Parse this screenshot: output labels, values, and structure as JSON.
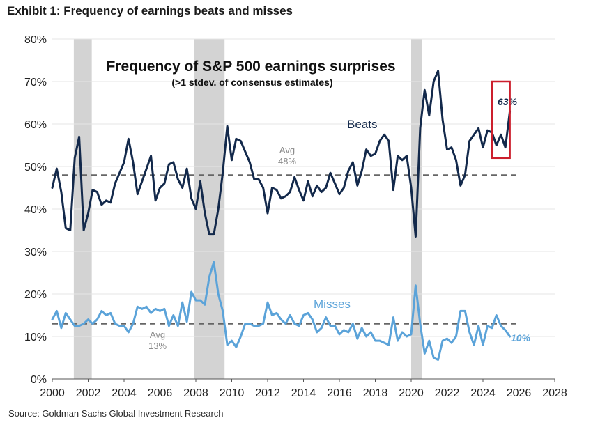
{
  "exhibit_title": "Exhibit 1: Frequency of earnings beats and misses",
  "source": "Source: Goldman Sachs Global Investment Research",
  "colors": {
    "beats": "#13294b",
    "misses": "#5ba3d9",
    "avg_line": "#666666",
    "recession": "#d3d3d3",
    "highlight_box": "#cc1f2d",
    "grid": "#e6e6e6"
  },
  "chart_data": {
    "type": "line",
    "title": "Frequency of S&P 500 earnings surprises",
    "subtitle": "(>1 stdev. of consensus estimates)",
    "xlabel": "",
    "ylabel": "",
    "xlim": [
      2000,
      2028
    ],
    "ylim": [
      0,
      80
    ],
    "x_ticks": [
      "2000",
      "2002",
      "2004",
      "2006",
      "2008",
      "2010",
      "2012",
      "2014",
      "2016",
      "2018",
      "2020",
      "2022",
      "2024",
      "2026",
      "2028"
    ],
    "y_ticks": [
      "0%",
      "10%",
      "20%",
      "30%",
      "40%",
      "50%",
      "60%",
      "70%",
      "80%"
    ],
    "grid": "horizontal",
    "recessions": [
      [
        2001.2,
        2002.2
      ],
      [
        2007.9,
        2009.6
      ],
      [
        2020.0,
        2020.6
      ]
    ],
    "averages": [
      {
        "series": "Beats",
        "value": 48,
        "label_line1": "Avg",
        "label_line2": "48%"
      },
      {
        "series": "Misses",
        "value": 13,
        "label_line1": "Avg",
        "label_line2": "13%"
      }
    ],
    "highlight": {
      "x_from": 2024.5,
      "x_to": 2025.5,
      "y_from": 52,
      "y_to": 70
    },
    "series": [
      {
        "name": "Beats",
        "end_label": "63%",
        "points": [
          [
            2000.0,
            45.0
          ],
          [
            2000.25,
            49.5
          ],
          [
            2000.5,
            44.0
          ],
          [
            2000.75,
            35.5
          ],
          [
            2001.0,
            35.0
          ],
          [
            2001.25,
            52.0
          ],
          [
            2001.5,
            57.0
          ],
          [
            2001.75,
            35.0
          ],
          [
            2002.0,
            39.0
          ],
          [
            2002.25,
            44.5
          ],
          [
            2002.5,
            44.0
          ],
          [
            2002.75,
            41.0
          ],
          [
            2003.0,
            42.0
          ],
          [
            2003.25,
            41.5
          ],
          [
            2003.5,
            46.0
          ],
          [
            2003.75,
            48.5
          ],
          [
            2004.0,
            51.0
          ],
          [
            2004.25,
            56.5
          ],
          [
            2004.5,
            51.0
          ],
          [
            2004.75,
            43.5
          ],
          [
            2005.0,
            46.5
          ],
          [
            2005.25,
            49.5
          ],
          [
            2005.5,
            52.5
          ],
          [
            2005.75,
            42.0
          ],
          [
            2006.0,
            45.0
          ],
          [
            2006.25,
            46.0
          ],
          [
            2006.5,
            50.5
          ],
          [
            2006.75,
            51.0
          ],
          [
            2007.0,
            47.0
          ],
          [
            2007.25,
            45.0
          ],
          [
            2007.5,
            49.5
          ],
          [
            2007.75,
            42.5
          ],
          [
            2008.0,
            40.0
          ],
          [
            2008.25,
            46.5
          ],
          [
            2008.5,
            39.0
          ],
          [
            2008.75,
            34.0
          ],
          [
            2009.0,
            34.0
          ],
          [
            2009.25,
            40.0
          ],
          [
            2009.5,
            48.5
          ],
          [
            2009.75,
            59.5
          ],
          [
            2010.0,
            51.5
          ],
          [
            2010.25,
            56.5
          ],
          [
            2010.5,
            56.0
          ],
          [
            2010.75,
            53.5
          ],
          [
            2011.0,
            51.0
          ],
          [
            2011.25,
            47.0
          ],
          [
            2011.5,
            47.0
          ],
          [
            2011.75,
            45.0
          ],
          [
            2012.0,
            39.0
          ],
          [
            2012.25,
            45.0
          ],
          [
            2012.5,
            44.5
          ],
          [
            2012.75,
            42.5
          ],
          [
            2013.0,
            43.0
          ],
          [
            2013.25,
            44.0
          ],
          [
            2013.5,
            47.5
          ],
          [
            2013.75,
            44.5
          ],
          [
            2014.0,
            42.0
          ],
          [
            2014.25,
            46.5
          ],
          [
            2014.5,
            43.0
          ],
          [
            2014.75,
            45.5
          ],
          [
            2015.0,
            44.0
          ],
          [
            2015.25,
            45.0
          ],
          [
            2015.5,
            48.5
          ],
          [
            2015.75,
            46.0
          ],
          [
            2016.0,
            43.5
          ],
          [
            2016.25,
            45.0
          ],
          [
            2016.5,
            49.0
          ],
          [
            2016.75,
            51.0
          ],
          [
            2017.0,
            45.5
          ],
          [
            2017.25,
            49.0
          ],
          [
            2017.5,
            54.0
          ],
          [
            2017.75,
            52.5
          ],
          [
            2018.0,
            53.0
          ],
          [
            2018.25,
            56.0
          ],
          [
            2018.5,
            57.5
          ],
          [
            2018.75,
            56.0
          ],
          [
            2019.0,
            44.5
          ],
          [
            2019.25,
            52.5
          ],
          [
            2019.5,
            51.5
          ],
          [
            2019.75,
            52.5
          ],
          [
            2020.0,
            45.0
          ],
          [
            2020.25,
            33.5
          ],
          [
            2020.5,
            59.0
          ],
          [
            2020.75,
            68.0
          ],
          [
            2021.0,
            62.0
          ],
          [
            2021.25,
            70.0
          ],
          [
            2021.5,
            72.5
          ],
          [
            2021.75,
            61.0
          ],
          [
            2022.0,
            54.0
          ],
          [
            2022.25,
            54.5
          ],
          [
            2022.5,
            51.5
          ],
          [
            2022.75,
            45.5
          ],
          [
            2023.0,
            48.0
          ],
          [
            2023.25,
            56.0
          ],
          [
            2023.5,
            57.5
          ],
          [
            2023.75,
            59.0
          ],
          [
            2024.0,
            54.5
          ],
          [
            2024.25,
            58.5
          ],
          [
            2024.5,
            58.0
          ],
          [
            2024.75,
            55.0
          ],
          [
            2025.0,
            57.5
          ],
          [
            2025.25,
            54.5
          ],
          [
            2025.5,
            63.0
          ]
        ]
      },
      {
        "name": "Misses",
        "end_label": "10%",
        "points": [
          [
            2000.0,
            14.0
          ],
          [
            2000.25,
            16.0
          ],
          [
            2000.5,
            12.0
          ],
          [
            2000.75,
            15.5
          ],
          [
            2001.0,
            14.0
          ],
          [
            2001.25,
            12.5
          ],
          [
            2001.5,
            12.5
          ],
          [
            2001.75,
            13.0
          ],
          [
            2002.0,
            14.0
          ],
          [
            2002.25,
            13.0
          ],
          [
            2002.5,
            14.0
          ],
          [
            2002.75,
            16.0
          ],
          [
            2003.0,
            15.0
          ],
          [
            2003.25,
            15.5
          ],
          [
            2003.5,
            13.0
          ],
          [
            2003.75,
            12.5
          ],
          [
            2004.0,
            12.5
          ],
          [
            2004.25,
            11.0
          ],
          [
            2004.5,
            13.0
          ],
          [
            2004.75,
            17.0
          ],
          [
            2005.0,
            16.5
          ],
          [
            2005.25,
            17.0
          ],
          [
            2005.5,
            15.5
          ],
          [
            2005.75,
            16.5
          ],
          [
            2006.0,
            16.0
          ],
          [
            2006.25,
            16.5
          ],
          [
            2006.5,
            12.5
          ],
          [
            2006.75,
            15.0
          ],
          [
            2007.0,
            12.5
          ],
          [
            2007.25,
            18.0
          ],
          [
            2007.5,
            13.5
          ],
          [
            2007.75,
            20.5
          ],
          [
            2008.0,
            18.5
          ],
          [
            2008.25,
            18.5
          ],
          [
            2008.5,
            17.5
          ],
          [
            2008.75,
            24.0
          ],
          [
            2009.0,
            27.5
          ],
          [
            2009.25,
            20.0
          ],
          [
            2009.5,
            16.0
          ],
          [
            2009.75,
            8.0
          ],
          [
            2010.0,
            9.0
          ],
          [
            2010.25,
            7.5
          ],
          [
            2010.5,
            10.0
          ],
          [
            2010.75,
            13.0
          ],
          [
            2011.0,
            13.0
          ],
          [
            2011.25,
            12.5
          ],
          [
            2011.5,
            12.5
          ],
          [
            2011.75,
            13.0
          ],
          [
            2012.0,
            18.0
          ],
          [
            2012.25,
            15.0
          ],
          [
            2012.5,
            15.5
          ],
          [
            2012.75,
            14.0
          ],
          [
            2013.0,
            13.0
          ],
          [
            2013.25,
            15.0
          ],
          [
            2013.5,
            13.0
          ],
          [
            2013.75,
            12.5
          ],
          [
            2014.0,
            15.0
          ],
          [
            2014.25,
            15.5
          ],
          [
            2014.5,
            14.0
          ],
          [
            2014.75,
            11.0
          ],
          [
            2015.0,
            12.0
          ],
          [
            2015.25,
            14.5
          ],
          [
            2015.5,
            12.5
          ],
          [
            2015.75,
            12.5
          ],
          [
            2016.0,
            10.5
          ],
          [
            2016.25,
            11.5
          ],
          [
            2016.5,
            11.0
          ],
          [
            2016.75,
            13.0
          ],
          [
            2017.0,
            9.5
          ],
          [
            2017.25,
            12.0
          ],
          [
            2017.5,
            10.0
          ],
          [
            2017.75,
            11.0
          ],
          [
            2018.0,
            9.0
          ],
          [
            2018.25,
            9.0
          ],
          [
            2018.5,
            8.5
          ],
          [
            2018.75,
            8.0
          ],
          [
            2019.0,
            14.5
          ],
          [
            2019.25,
            9.0
          ],
          [
            2019.5,
            11.0
          ],
          [
            2019.75,
            10.0
          ],
          [
            2020.0,
            10.5
          ],
          [
            2020.25,
            22.0
          ],
          [
            2020.5,
            13.0
          ],
          [
            2020.75,
            6.0
          ],
          [
            2021.0,
            9.0
          ],
          [
            2021.25,
            5.0
          ],
          [
            2021.5,
            4.5
          ],
          [
            2021.75,
            9.0
          ],
          [
            2022.0,
            9.5
          ],
          [
            2022.25,
            8.5
          ],
          [
            2022.5,
            10.0
          ],
          [
            2022.75,
            16.0
          ],
          [
            2023.0,
            16.0
          ],
          [
            2023.25,
            11.0
          ],
          [
            2023.5,
            8.0
          ],
          [
            2023.75,
            12.5
          ],
          [
            2024.0,
            8.0
          ],
          [
            2024.25,
            12.5
          ],
          [
            2024.5,
            12.0
          ],
          [
            2024.75,
            15.0
          ],
          [
            2025.0,
            12.5
          ],
          [
            2025.25,
            11.5
          ],
          [
            2025.5,
            10.0
          ]
        ]
      }
    ]
  }
}
